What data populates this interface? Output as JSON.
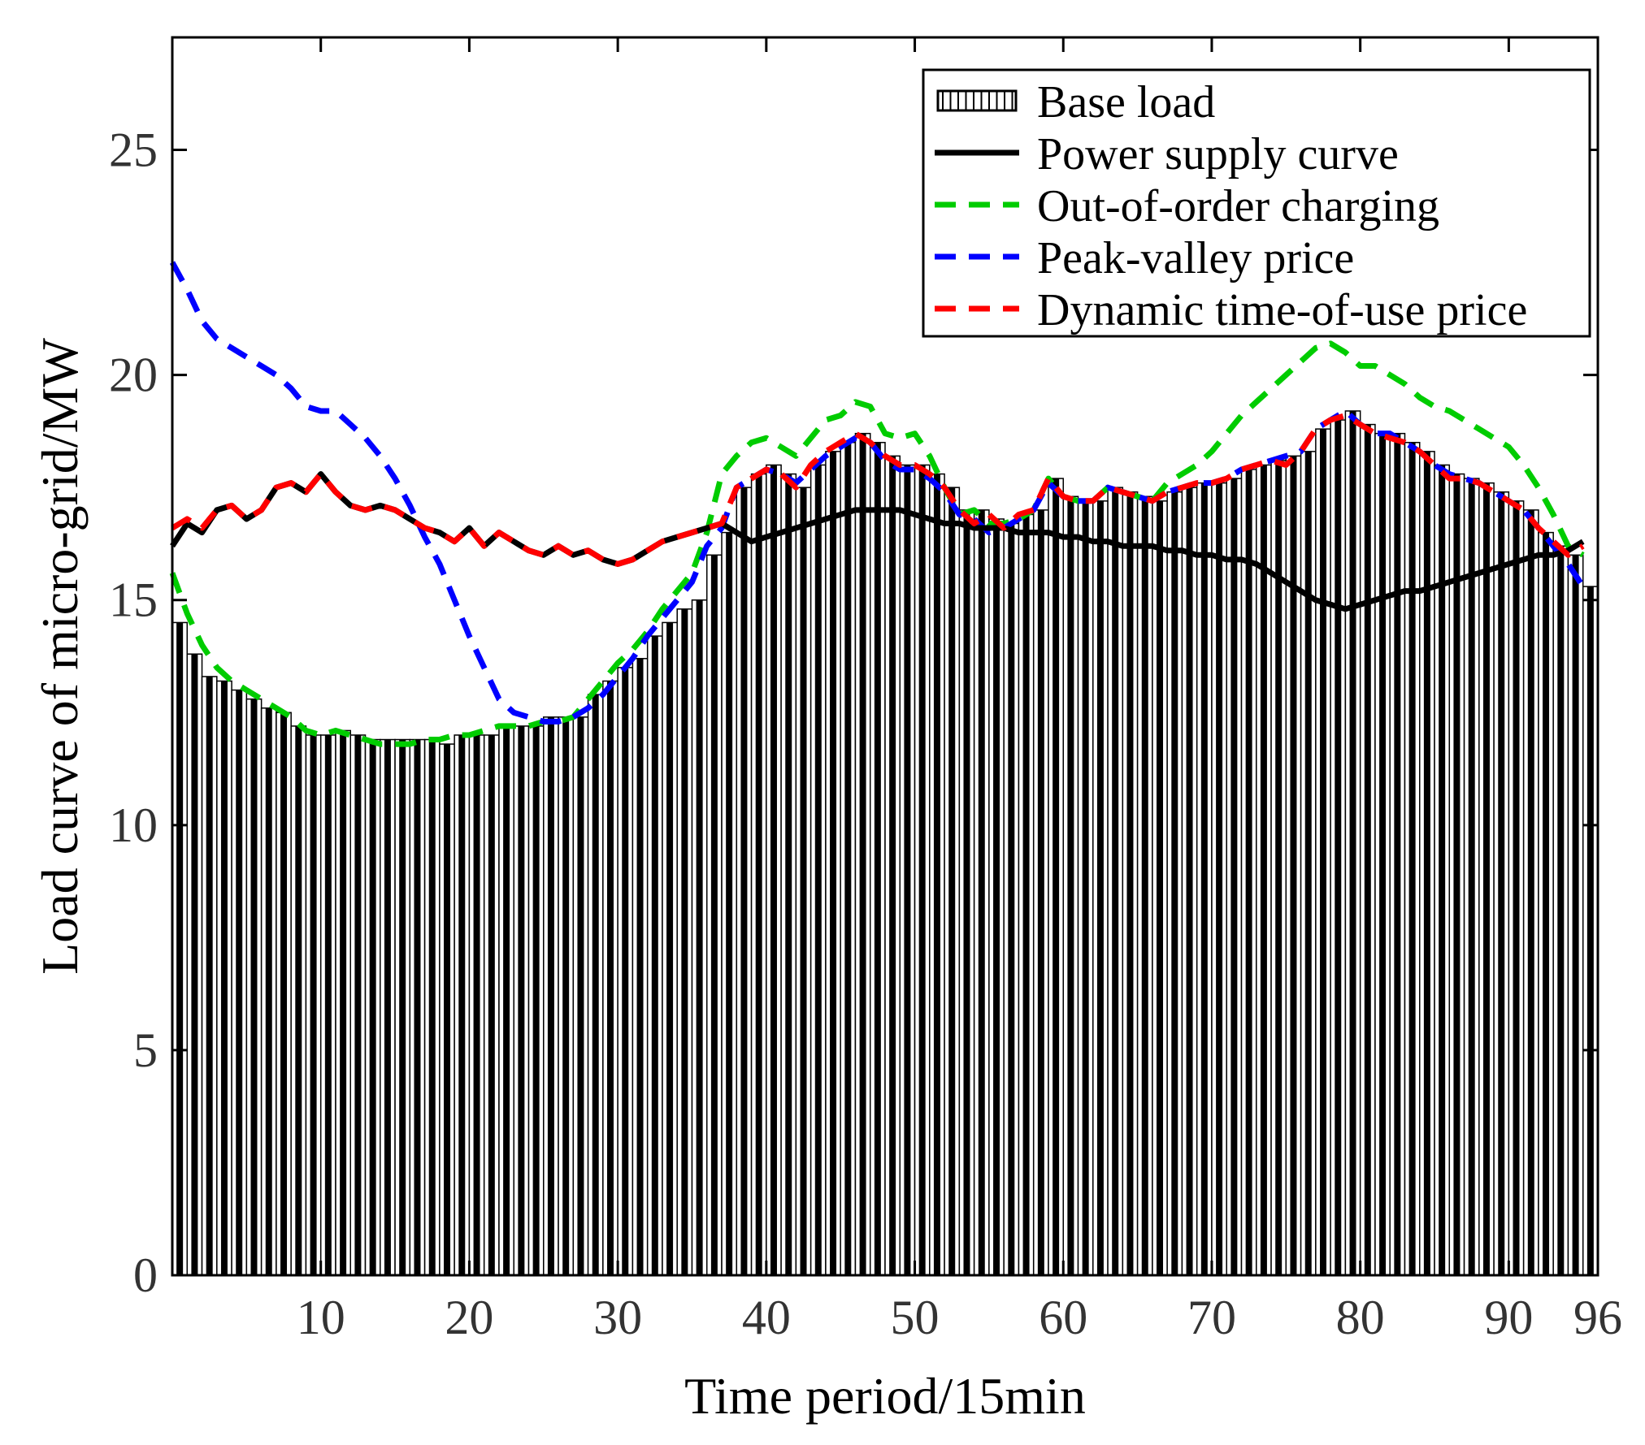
{
  "chart_data": {
    "type": "bar",
    "xlabel": "Time period/15min",
    "ylabel": "Load curve of micro-grid/MW",
    "xlim": [
      0,
      96
    ],
    "ylim": [
      0,
      27.5
    ],
    "xticks": [
      10,
      20,
      30,
      40,
      50,
      60,
      70,
      80,
      90,
      96
    ],
    "yticks": [
      0,
      5,
      10,
      15,
      20,
      25
    ],
    "grid": false,
    "legend_position": "top-right",
    "categories": [
      1,
      2,
      3,
      4,
      5,
      6,
      7,
      8,
      9,
      10,
      11,
      12,
      13,
      14,
      15,
      16,
      17,
      18,
      19,
      20,
      21,
      22,
      23,
      24,
      25,
      26,
      27,
      28,
      29,
      30,
      31,
      32,
      33,
      34,
      35,
      36,
      37,
      38,
      39,
      40,
      41,
      42,
      43,
      44,
      45,
      46,
      47,
      48,
      49,
      50,
      51,
      52,
      53,
      54,
      55,
      56,
      57,
      58,
      59,
      60,
      61,
      62,
      63,
      64,
      65,
      66,
      67,
      68,
      69,
      70,
      71,
      72,
      73,
      74,
      75,
      76,
      77,
      78,
      79,
      80,
      81,
      82,
      83,
      84,
      85,
      86,
      87,
      88,
      89,
      90,
      91,
      92,
      93,
      94,
      95,
      96
    ],
    "series": [
      {
        "name": "Base load",
        "kind": "bar",
        "color": "#000000",
        "values": [
          14.5,
          13.8,
          13.3,
          13.2,
          13.0,
          12.8,
          12.6,
          12.5,
          12.2,
          12.0,
          12.0,
          12.1,
          12.0,
          11.9,
          11.9,
          11.9,
          11.9,
          11.9,
          11.8,
          12.0,
          12.0,
          12.0,
          12.2,
          12.2,
          12.2,
          12.4,
          12.4,
          12.4,
          12.9,
          13.2,
          13.5,
          13.7,
          14.2,
          14.5,
          14.8,
          15.0,
          16.0,
          16.5,
          17.5,
          17.8,
          18.0,
          17.8,
          17.5,
          18.0,
          18.3,
          18.5,
          18.7,
          18.5,
          18.2,
          18.0,
          18.0,
          17.8,
          17.5,
          17.0,
          17.0,
          16.8,
          16.7,
          16.9,
          17.0,
          17.7,
          17.3,
          17.2,
          17.2,
          17.5,
          17.4,
          17.3,
          17.2,
          17.4,
          17.5,
          17.6,
          17.6,
          17.7,
          17.9,
          18.0,
          18.1,
          18.2,
          18.3,
          18.8,
          19.0,
          19.2,
          18.9,
          18.7,
          18.7,
          18.5,
          18.3,
          18.0,
          17.8,
          17.7,
          17.6,
          17.4,
          17.2,
          17.0,
          16.5,
          16.2,
          16.0,
          15.3
        ]
      },
      {
        "name": "Power supply curve",
        "kind": "line",
        "color": "#000000",
        "values": [
          16.2,
          16.7,
          16.5,
          17.0,
          17.1,
          16.8,
          17.0,
          17.5,
          17.6,
          17.4,
          17.8,
          17.4,
          17.1,
          17.0,
          17.1,
          17.0,
          16.8,
          16.6,
          16.5,
          16.3,
          16.6,
          16.2,
          16.5,
          16.3,
          16.1,
          16.0,
          16.2,
          16.0,
          16.1,
          15.9,
          15.8,
          15.9,
          16.1,
          16.3,
          16.4,
          16.5,
          16.6,
          16.7,
          16.5,
          16.3,
          16.4,
          16.5,
          16.6,
          16.7,
          16.8,
          16.9,
          17.0,
          17.0,
          17.0,
          17.0,
          16.9,
          16.8,
          16.7,
          16.7,
          16.6,
          16.6,
          16.6,
          16.5,
          16.5,
          16.5,
          16.4,
          16.4,
          16.3,
          16.3,
          16.2,
          16.2,
          16.2,
          16.1,
          16.1,
          16.0,
          16.0,
          15.9,
          15.9,
          15.8,
          15.6,
          15.4,
          15.2,
          15.0,
          14.9,
          14.8,
          14.9,
          15.0,
          15.1,
          15.2,
          15.2,
          15.3,
          15.4,
          15.5,
          15.6,
          15.7,
          15.8,
          15.9,
          16.0,
          16.0,
          16.1,
          16.3
        ]
      },
      {
        "name": "Out-of-order charging",
        "kind": "line",
        "dashed": true,
        "color": "#00cc00",
        "values": [
          15.6,
          14.7,
          14.0,
          13.5,
          13.2,
          13.0,
          12.8,
          12.6,
          12.4,
          12.1,
          12.0,
          12.1,
          12.0,
          11.9,
          11.8,
          11.8,
          11.8,
          11.9,
          11.9,
          12.0,
          12.0,
          12.1,
          12.2,
          12.2,
          12.2,
          12.3,
          12.3,
          12.4,
          12.8,
          13.2,
          13.6,
          13.9,
          14.3,
          14.8,
          15.2,
          15.6,
          16.5,
          17.8,
          18.2,
          18.5,
          18.6,
          18.4,
          18.2,
          18.6,
          19.0,
          19.1,
          19.4,
          19.3,
          18.7,
          18.6,
          18.7,
          18.2,
          17.5,
          16.9,
          17.0,
          16.7,
          16.7,
          16.8,
          17.0,
          17.7,
          17.3,
          17.2,
          17.2,
          17.5,
          17.4,
          17.3,
          17.2,
          17.6,
          17.8,
          18.0,
          18.3,
          18.7,
          19.1,
          19.4,
          19.7,
          20.0,
          20.3,
          20.6,
          20.7,
          20.5,
          20.2,
          20.2,
          20.0,
          19.8,
          19.5,
          19.3,
          19.2,
          19.0,
          18.8,
          18.6,
          18.4,
          18.0,
          17.5,
          16.9,
          16.2,
          16.0
        ]
      },
      {
        "name": "Peak-valley price",
        "kind": "line",
        "dashed": true,
        "color": "#0000ff",
        "values": [
          22.5,
          21.9,
          21.2,
          20.8,
          20.6,
          20.4,
          20.2,
          20.0,
          19.7,
          19.3,
          19.2,
          19.2,
          18.9,
          18.6,
          18.2,
          17.7,
          17.1,
          16.4,
          15.8,
          15.0,
          14.2,
          13.5,
          12.8,
          12.5,
          12.4,
          12.3,
          12.3,
          12.4,
          12.6,
          12.9,
          13.3,
          13.7,
          14.2,
          14.6,
          15.0,
          15.4,
          16.2,
          16.6,
          17.5,
          17.7,
          17.9,
          17.8,
          17.6,
          17.9,
          18.2,
          18.4,
          18.6,
          18.5,
          18.1,
          17.9,
          17.9,
          17.7,
          17.4,
          16.9,
          16.8,
          16.5,
          16.6,
          16.8,
          17.0,
          17.6,
          17.3,
          17.2,
          17.2,
          17.5,
          17.4,
          17.3,
          17.2,
          17.4,
          17.5,
          17.6,
          17.6,
          17.7,
          17.9,
          18.0,
          18.1,
          18.2,
          18.3,
          18.8,
          19.0,
          19.2,
          18.9,
          18.7,
          18.7,
          18.5,
          18.3,
          18.0,
          17.8,
          17.7,
          17.6,
          17.4,
          17.2,
          17.0,
          16.6,
          16.2,
          15.8,
          15.3
        ]
      },
      {
        "name": "Dynamic time-of-use price",
        "kind": "line",
        "dashed": true,
        "color": "#ff0000",
        "values": [
          16.6,
          16.8,
          16.6,
          17.0,
          17.1,
          16.8,
          17.0,
          17.5,
          17.6,
          17.4,
          17.8,
          17.4,
          17.1,
          17.0,
          17.1,
          17.0,
          16.8,
          16.6,
          16.5,
          16.3,
          16.6,
          16.2,
          16.5,
          16.3,
          16.1,
          16.0,
          16.2,
          16.0,
          16.1,
          15.9,
          15.8,
          15.9,
          16.1,
          16.3,
          16.4,
          16.5,
          16.6,
          16.7,
          17.5,
          17.7,
          17.9,
          17.8,
          17.5,
          18.0,
          18.3,
          18.5,
          18.7,
          18.5,
          18.2,
          18.0,
          18.0,
          17.8,
          17.5,
          17.0,
          16.7,
          16.9,
          16.6,
          16.9,
          17.0,
          17.7,
          17.3,
          17.2,
          17.2,
          17.5,
          17.4,
          17.3,
          17.2,
          17.4,
          17.5,
          17.6,
          17.6,
          17.7,
          17.9,
          18.0,
          18.1,
          18.0,
          18.3,
          18.8,
          19.0,
          19.1,
          18.9,
          18.7,
          18.6,
          18.5,
          18.3,
          18.0,
          17.7,
          17.7,
          17.6,
          17.4,
          17.2,
          17.0,
          16.6,
          16.3,
          16.0,
          16.2
        ]
      }
    ]
  }
}
